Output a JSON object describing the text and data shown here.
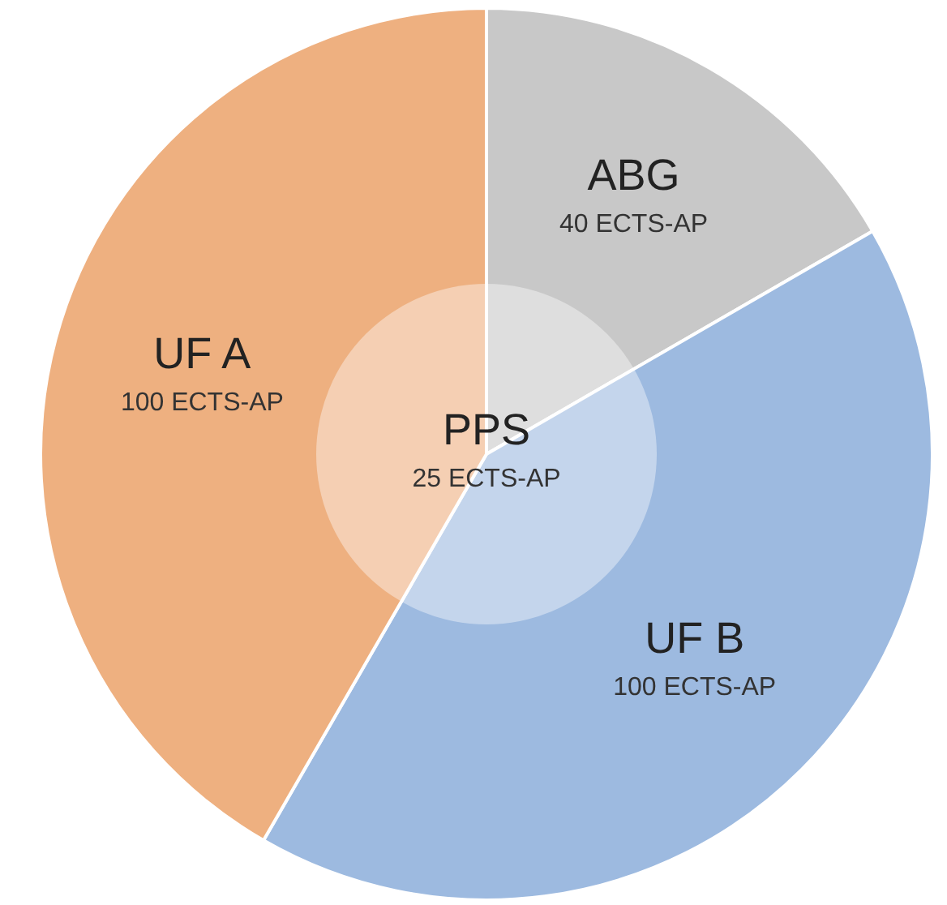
{
  "chart_data": {
    "type": "donut",
    "categories": [
      "ABG",
      "UF B",
      "UF A"
    ],
    "values": [
      40,
      100,
      100
    ],
    "colors": [
      "#c8c8c8",
      "#9dbae0",
      "#eeb080"
    ],
    "value_labels": [
      "40 ECTS-AP",
      "100 ECTS-AP",
      "100 ECTS-AP"
    ],
    "annotations": [
      "PPS",
      "25 ECTS-AP"
    ]
  }
}
